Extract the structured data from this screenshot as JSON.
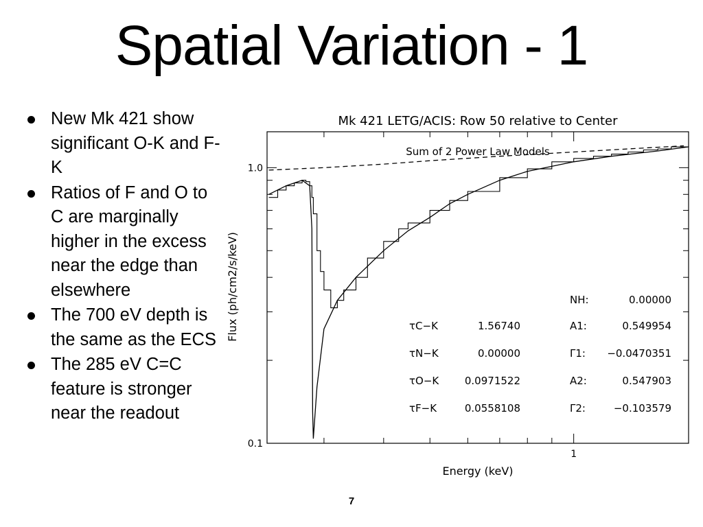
{
  "slide": {
    "title": "Spatial Variation - 1",
    "page_number": "7",
    "bullets": [
      "New Mk 421 show significant O-K and F-K",
      "Ratios of F and O to C are marginally higher in the excess near the edge than elsewhere",
      "The 700 eV depth is the same as the ECS",
      "The 285 eV C=C feature is stronger near the readout"
    ]
  },
  "chart_data": {
    "type": "line",
    "title": "Mk 421 LETG/ACIS: Row 50 relative to Center",
    "subtitle": "Sum of 2 Power Law Models",
    "xlabel": "Energy (keV)",
    "ylabel": "Flux (ph/cm2/s/keV)",
    "x_scale": "log",
    "y_scale": "log",
    "xlim": [
      0.228,
      1.74
    ],
    "ylim": [
      0.1,
      1.35
    ],
    "x_tick_labels": [
      {
        "value": 1,
        "label": "1"
      }
    ],
    "y_tick_labels": [
      {
        "value": 1.0,
        "label": "1.0"
      },
      {
        "value": 0.1,
        "label": "0.1"
      }
    ],
    "grid": false,
    "series": [
      {
        "style": "dashed",
        "x": [
          0.23,
          0.3,
          0.4,
          0.5,
          0.7,
          1.0,
          1.3,
          1.7
        ],
        "y": [
          0.98,
          1.0,
          1.03,
          1.06,
          1.1,
          1.14,
          1.17,
          1.2
        ]
      },
      {
        "style": "solid",
        "x": [
          0.23,
          0.25,
          0.27,
          0.28,
          0.283,
          0.284,
          0.285,
          0.29,
          0.3,
          0.32,
          0.35,
          0.4,
          0.45,
          0.5,
          0.55,
          0.6,
          0.7,
          0.8,
          1.0,
          1.2,
          1.5,
          1.74
        ],
        "y": [
          0.8,
          0.86,
          0.9,
          0.86,
          0.6,
          0.13,
          0.104,
          0.16,
          0.26,
          0.33,
          0.4,
          0.5,
          0.59,
          0.66,
          0.74,
          0.8,
          0.9,
          0.97,
          1.05,
          1.1,
          1.15,
          1.19
        ]
      },
      {
        "style": "histogram",
        "x": [
          0.23,
          0.24,
          0.25,
          0.26,
          0.27,
          0.275,
          0.28,
          0.283,
          0.285,
          0.29,
          0.295,
          0.3,
          0.31,
          0.32,
          0.33,
          0.35,
          0.37,
          0.4,
          0.43,
          0.45,
          0.5,
          0.55,
          0.6,
          0.7,
          0.8,
          0.9,
          1.0,
          1.1,
          1.2,
          1.3,
          1.4,
          1.5,
          1.6,
          1.74
        ],
        "y": [
          0.78,
          0.83,
          0.86,
          0.88,
          0.9,
          0.89,
          0.86,
          0.78,
          0.68,
          0.5,
          0.42,
          0.36,
          0.31,
          0.33,
          0.36,
          0.4,
          0.47,
          0.54,
          0.6,
          0.63,
          0.7,
          0.76,
          0.82,
          0.92,
          0.99,
          1.05,
          1.08,
          1.1,
          1.12,
          1.14,
          1.16,
          1.17,
          1.19,
          1.2
        ]
      }
    ],
    "annotations": [
      {
        "symbol": "NH:",
        "value": "0.00000"
      },
      {
        "symbol": "A1:",
        "value": "0.549954"
      },
      {
        "symbol": "Γ1:",
        "value": "−0.0470351"
      },
      {
        "symbol": "A2:",
        "value": "0.547903"
      },
      {
        "symbol": "Γ2:",
        "value": "−0.103579"
      },
      {
        "symbol": "τC−K",
        "value": "1.56740"
      },
      {
        "symbol": "τN−K",
        "value": "0.00000"
      },
      {
        "symbol": "τO−K",
        "value": "0.0971522"
      },
      {
        "symbol": "τF−K",
        "value": "0.0558108"
      }
    ]
  }
}
